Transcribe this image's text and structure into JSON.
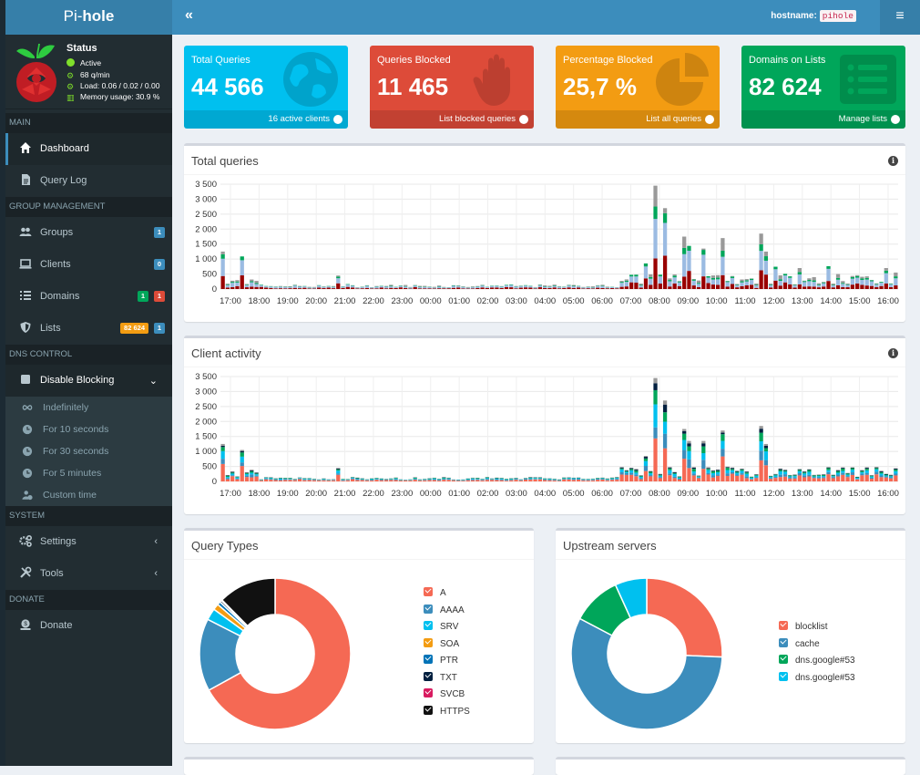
{
  "app": {
    "logo_light": "Pi-",
    "logo_bold": "hole"
  },
  "status": {
    "title": "Status",
    "active": "Active",
    "rate": "68 q/min",
    "load": "Load: 0.06 / 0.02 / 0.00",
    "memory": "Memory usage: 30.9 %"
  },
  "topbar": {
    "hostname_label": "hostname:",
    "hostname": "pihole"
  },
  "sidebar": {
    "sec_main": "MAIN",
    "dashboard": "Dashboard",
    "query_log": "Query Log",
    "sec_group": "GROUP MANAGEMENT",
    "groups": "Groups",
    "groups_badge": "1",
    "clients": "Clients",
    "clients_badge": "0",
    "domains": "Domains",
    "domains_badge_allow": "1",
    "domains_badge_deny": "1",
    "lists": "Lists",
    "lists_badge_count": "82 624",
    "lists_badge_lists": "1",
    "sec_dns": "DNS CONTROL",
    "disable_blocking": "Disable Blocking",
    "indefinitely": "Indefinitely",
    "for_10s": "For 10 seconds",
    "for_30s": "For 30 seconds",
    "for_5m": "For 5 minutes",
    "custom_time": "Custom time",
    "sec_system": "SYSTEM",
    "settings": "Settings",
    "tools": "Tools",
    "sec_donate": "DONATE",
    "donate": "Donate"
  },
  "cards": {
    "total": {
      "title": "Total Queries",
      "value": "44 566",
      "footer": "16 active clients",
      "color": "#00c0ef"
    },
    "blocked": {
      "title": "Queries Blocked",
      "value": "11 465",
      "footer": "List blocked queries",
      "color": "#dd4b39"
    },
    "percent": {
      "title": "Percentage Blocked",
      "value": "25,7 %",
      "footer": "List all queries",
      "color": "#f39c12"
    },
    "domains": {
      "title": "Domains on Lists",
      "value": "82 624",
      "footer": "Manage lists",
      "color": "#00a65a"
    }
  },
  "panels": {
    "total_queries": "Total queries",
    "client_activity": "Client activity",
    "query_types": "Query Types",
    "upstream": "Upstream servers"
  },
  "chart_data": [
    {
      "type": "bar",
      "chart": "total_queries",
      "stacked": true,
      "x_tick_labels": [
        "17:00",
        "18:00",
        "19:00",
        "20:00",
        "21:00",
        "22:00",
        "23:00",
        "00:00",
        "01:00",
        "02:00",
        "03:00",
        "04:00",
        "05:00",
        "06:00",
        "07:00",
        "08:00",
        "09:00",
        "10:00",
        "11:00",
        "12:00",
        "13:00",
        "14:00",
        "15:00",
        "16:00"
      ],
      "y_tick_labels": [
        "0",
        "500",
        "1 000",
        "1 500",
        "2 000",
        "2 500",
        "3 000",
        "3 500"
      ],
      "ylim": [
        0,
        3500
      ],
      "series_colors": {
        "blocked": "#990000",
        "cached": "#9bbbe2",
        "permitted": "#00a65a",
        "other": "#999999"
      },
      "peaks": [
        {
          "hour": 0.05,
          "total": 1250
        },
        {
          "hour": 0.6,
          "total": 1050
        },
        {
          "hour": 4.0,
          "total": 450
        },
        {
          "hour": 14.6,
          "total": 850
        },
        {
          "hour": 15.0,
          "total": 3450
        },
        {
          "hour": 15.4,
          "total": 2700
        },
        {
          "hour": 16.0,
          "total": 1750
        },
        {
          "hour": 16.2,
          "total": 1350
        },
        {
          "hour": 16.6,
          "total": 1350
        },
        {
          "hour": 17.3,
          "total": 1700
        },
        {
          "hour": 18.6,
          "total": 1850
        },
        {
          "hour": 18.8,
          "total": 1250
        },
        {
          "hour": 19.2,
          "total": 700
        },
        {
          "hour": 20.0,
          "total": 700
        },
        {
          "hour": 21.0,
          "total": 750
        },
        {
          "hour": 21.4,
          "total": 500
        },
        {
          "hour": 23.0,
          "total": 700
        },
        {
          "hour": 23.3,
          "total": 550
        },
        {
          "hour": 23.7,
          "total": 600
        }
      ]
    },
    {
      "type": "bar",
      "chart": "client_activity",
      "stacked": true,
      "x_tick_labels": [
        "17:00",
        "18:00",
        "19:00",
        "20:00",
        "21:00",
        "22:00",
        "23:00",
        "00:00",
        "01:00",
        "02:00",
        "03:00",
        "04:00",
        "05:00",
        "06:00",
        "07:00",
        "08:00",
        "09:00",
        "10:00",
        "11:00",
        "12:00",
        "13:00",
        "14:00",
        "15:00",
        "16:00"
      ],
      "y_tick_labels": [
        "0",
        "500",
        "1 000",
        "1 500",
        "2 000",
        "2 500",
        "3 000",
        "3 500"
      ],
      "ylim": [
        0,
        3500
      ],
      "series_colors": [
        "#f56954",
        "#3c8dbc",
        "#00c0ef",
        "#00a65a",
        "#001f3f",
        "#999999"
      ],
      "peaks": [
        {
          "hour": 0.05,
          "total": 1250
        },
        {
          "hour": 0.6,
          "total": 1050
        },
        {
          "hour": 4.0,
          "total": 450
        },
        {
          "hour": 14.6,
          "total": 850
        },
        {
          "hour": 15.0,
          "total": 3450
        },
        {
          "hour": 15.4,
          "total": 2700
        },
        {
          "hour": 16.0,
          "total": 1750
        },
        {
          "hour": 16.2,
          "total": 1350
        },
        {
          "hour": 16.6,
          "total": 1350
        },
        {
          "hour": 17.3,
          "total": 1700
        },
        {
          "hour": 18.6,
          "total": 1850
        },
        {
          "hour": 18.8,
          "total": 1250
        }
      ]
    },
    {
      "type": "pie",
      "chart": "query_types",
      "donut": true,
      "labels": [
        "A",
        "AAAA",
        "SRV",
        "SOA",
        "PTR",
        "TXT",
        "SVCB",
        "HTTPS"
      ],
      "values": [
        67.0,
        15.5,
        2.5,
        1.3,
        0.7,
        0.4,
        0.2,
        12.4
      ],
      "colors": [
        "#f56954",
        "#3c8dbc",
        "#00c0ef",
        "#f39c12",
        "#0073b7",
        "#001f3f",
        "#d81b60",
        "#111111"
      ]
    },
    {
      "type": "pie",
      "chart": "upstream_servers",
      "donut": true,
      "labels": [
        "blocklist",
        "cache",
        "dns.google#53",
        "dns.google#53"
      ],
      "values": [
        25.7,
        57.0,
        10.5,
        6.8
      ],
      "colors": [
        "#f56954",
        "#3c8dbc",
        "#00a65a",
        "#00c0ef"
      ]
    }
  ]
}
